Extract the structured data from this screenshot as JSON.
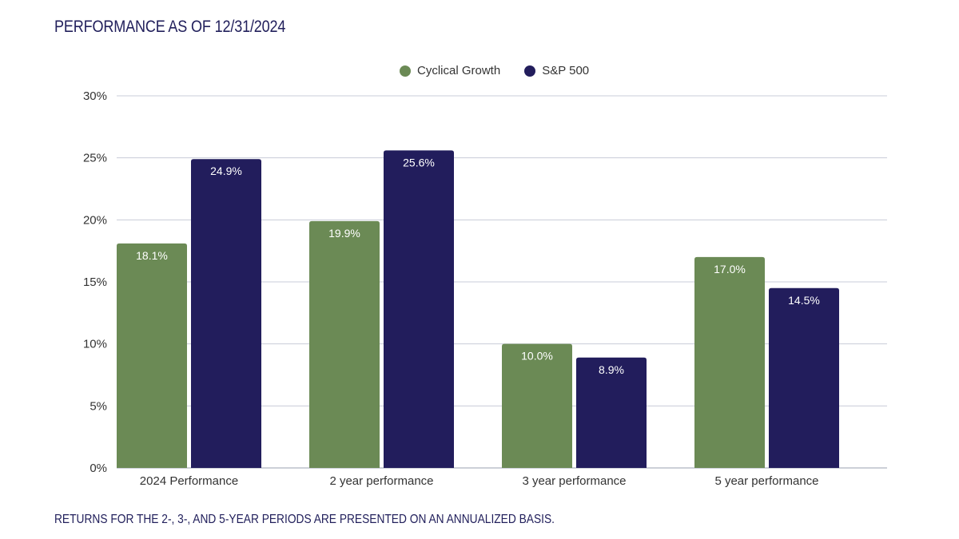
{
  "title": "PERFORMANCE AS OF 12/31/2024",
  "footnote": "RETURNS FOR THE 2-, 3-, AND 5-YEAR PERIODS ARE PRESENTED ON AN ANNUALIZED BASIS.",
  "colors": {
    "cyclical_growth": "#6b8a55",
    "sp500": "#221d5c",
    "title_text": "#22205c",
    "grid": "#c8ccd8",
    "axis_text": "#333333",
    "bar_label": "#ffffff"
  },
  "chart_data": {
    "type": "bar",
    "title": "",
    "xlabel": "",
    "ylabel": "",
    "categories": [
      "2024 Performance",
      "2 year performance",
      "3 year performance",
      "5 year performance"
    ],
    "series": [
      {
        "name": "Cyclical Growth",
        "values": [
          18.1,
          19.9,
          10.0,
          17.0
        ],
        "labels": [
          "18.1%",
          "19.9%",
          "10.0%",
          "17.0%"
        ]
      },
      {
        "name": "S&P 500",
        "values": [
          24.9,
          25.6,
          8.9,
          14.5
        ],
        "labels": [
          "24.9%",
          "25.6%",
          "8.9%",
          "14.5%"
        ]
      }
    ],
    "ylim": [
      0,
      30
    ],
    "yticks": [
      0,
      5,
      10,
      15,
      20,
      25,
      30
    ],
    "ytick_labels": [
      "0%",
      "5%",
      "10%",
      "15%",
      "20%",
      "25%",
      "30%"
    ],
    "grid": true,
    "legend_position": "top-center"
  }
}
